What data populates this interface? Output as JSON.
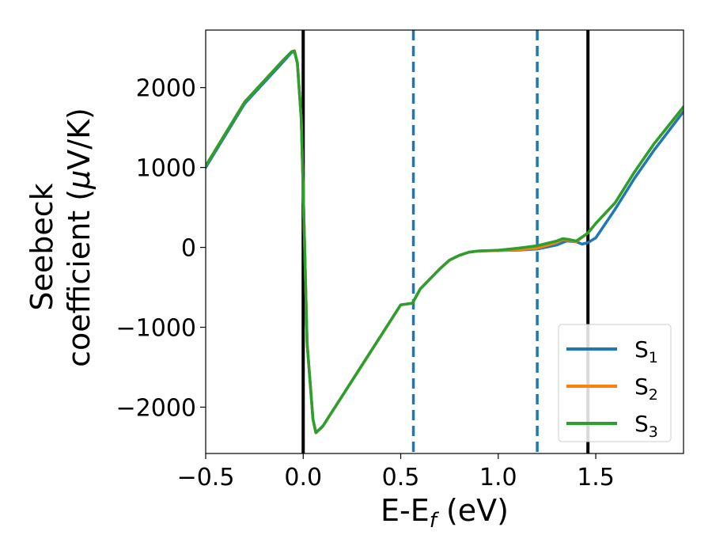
{
  "chart_data": {
    "type": "line",
    "title": "",
    "xlabel": "E-E",
    "xlabel_sub": "f",
    "xlabel_unit": " (eV)",
    "ylabel_line1": "Seebeck",
    "ylabel_line2": "coefficient  (",
    "ylabel_mu": "μ",
    "ylabel_unit": "V/K)",
    "xlim": [
      -0.5,
      1.95
    ],
    "ylim": [
      -2580,
      2720
    ],
    "xticks": [
      -0.5,
      0.0,
      0.5,
      1.0,
      1.5
    ],
    "xtick_labels": [
      "−0.5",
      "0.0",
      "0.5",
      "1.0",
      "1.5"
    ],
    "yticks": [
      -2000,
      -1000,
      0,
      1000,
      2000
    ],
    "ytick_labels": [
      "−2000",
      "−1000",
      "0",
      "1000",
      "2000"
    ],
    "vlines": [
      {
        "x": 0.0,
        "style": "solid",
        "color": "#000000"
      },
      {
        "x": 1.46,
        "style": "solid",
        "color": "#000000"
      },
      {
        "x": 0.565,
        "style": "dashed",
        "color": "#1f77b4"
      },
      {
        "x": 1.2,
        "style": "dashed",
        "color": "#1f77b4"
      }
    ],
    "legend_position": "lower-right",
    "series": [
      {
        "name": "S",
        "sub": "1",
        "color": "#1f77b4",
        "x": [
          -0.5,
          -0.3,
          -0.1,
          -0.06,
          -0.045,
          -0.03,
          -0.01,
          0.0,
          0.02,
          0.05,
          0.065,
          0.1,
          0.2,
          0.3,
          0.4,
          0.5,
          0.56,
          0.6,
          0.7,
          0.75,
          0.8,
          0.85,
          0.9,
          1.0,
          1.1,
          1.2,
          1.3,
          1.35,
          1.4,
          1.43,
          1.46,
          1.5,
          1.6,
          1.7,
          1.8,
          1.95
        ],
        "y": [
          1000,
          1800,
          2330,
          2440,
          2450,
          2300,
          1600,
          700,
          -1200,
          -2150,
          -2320,
          -2240,
          -1860,
          -1480,
          -1100,
          -720,
          -700,
          -520,
          -270,
          -160,
          -100,
          -60,
          -45,
          -40,
          -35,
          -20,
          30,
          80,
          70,
          40,
          60,
          120,
          480,
          870,
          1220,
          1700
        ]
      },
      {
        "name": "S",
        "sub": "2",
        "color": "#ff7f0e",
        "x": [
          -0.5,
          -0.3,
          -0.1,
          -0.06,
          -0.045,
          -0.03,
          -0.01,
          0.0,
          0.02,
          0.05,
          0.065,
          0.1,
          0.2,
          0.3,
          0.4,
          0.5,
          0.56,
          0.6,
          0.7,
          0.75,
          0.8,
          0.85,
          0.9,
          1.0,
          1.1,
          1.2,
          1.3,
          1.33,
          1.36,
          1.4,
          1.46,
          1.5,
          1.6,
          1.7,
          1.8,
          1.95
        ],
        "y": [
          1020,
          1820,
          2350,
          2450,
          2460,
          2310,
          1610,
          700,
          -1200,
          -2150,
          -2320,
          -2240,
          -1860,
          -1480,
          -1100,
          -720,
          -700,
          -520,
          -270,
          -160,
          -100,
          -60,
          -45,
          -40,
          -30,
          -10,
          60,
          100,
          90,
          70,
          180,
          300,
          560,
          950,
          1300,
          1750
        ]
      },
      {
        "name": "S",
        "sub": "3",
        "color": "#2ca02c",
        "x": [
          -0.5,
          -0.3,
          -0.1,
          -0.06,
          -0.045,
          -0.03,
          -0.01,
          0.0,
          0.02,
          0.05,
          0.065,
          0.1,
          0.2,
          0.3,
          0.4,
          0.5,
          0.56,
          0.6,
          0.7,
          0.75,
          0.8,
          0.85,
          0.9,
          1.0,
          1.1,
          1.2,
          1.3,
          1.33,
          1.36,
          1.4,
          1.46,
          1.5,
          1.6,
          1.7,
          1.8,
          1.95
        ],
        "y": [
          1020,
          1820,
          2350,
          2450,
          2460,
          2310,
          1610,
          700,
          -1200,
          -2150,
          -2320,
          -2240,
          -1860,
          -1480,
          -1100,
          -720,
          -700,
          -520,
          -270,
          -160,
          -100,
          -60,
          -45,
          -35,
          -10,
          20,
          80,
          110,
          100,
          80,
          180,
          300,
          560,
          950,
          1300,
          1760
        ]
      }
    ]
  }
}
